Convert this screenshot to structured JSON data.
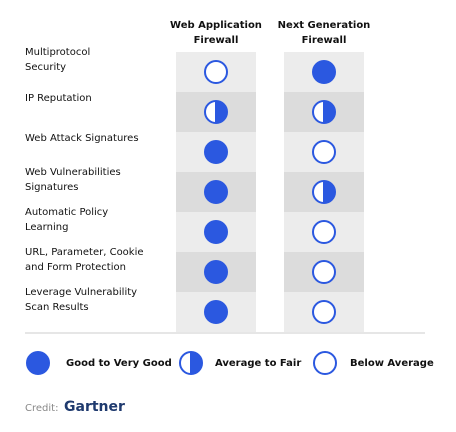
{
  "columns": [
    [
      "Web Application",
      "Firewall"
    ],
    [
      "Next Generation",
      "Firewall"
    ]
  ],
  "rows": [
    {
      "label": [
        "Multiprotocol",
        "Security"
      ],
      "ratings": [
        2,
        0
      ]
    },
    {
      "label": [
        "IP Reputation"
      ],
      "ratings": [
        1,
        1
      ]
    },
    {
      "label": [
        "Web Attack Signatures"
      ],
      "ratings": [
        0,
        2
      ]
    },
    {
      "label": [
        "Web Vulnerabilities",
        "Signatures"
      ],
      "ratings": [
        0,
        1
      ]
    },
    {
      "label": [
        "Automatic Policy",
        "Learning"
      ],
      "ratings": [
        0,
        2
      ]
    },
    {
      "label": [
        "URL, Parameter, Cookie",
        "and Form Protection"
      ],
      "ratings": [
        0,
        2
      ]
    },
    {
      "label": [
        "Leverage Vulnerability",
        "Scan Results"
      ],
      "ratings": [
        0,
        2
      ]
    }
  ],
  "legend": [
    "Good to Very Good",
    "Average to Fair",
    "Below Average"
  ],
  "credit": {
    "label": "Credit:",
    "source": "Gartner"
  }
}
